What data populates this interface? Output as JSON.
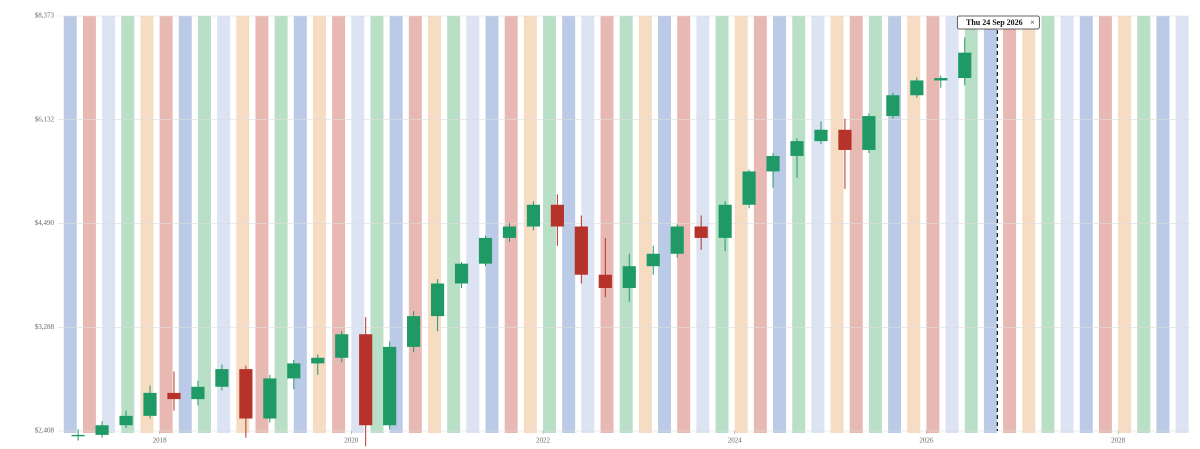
{
  "chart_data": {
    "type": "candlestick",
    "x": [
      2017.15,
      2017.4,
      2017.65,
      2017.9,
      2018.15,
      2018.4,
      2018.65,
      2018.9,
      2019.15,
      2019.4,
      2019.65,
      2019.9,
      2020.15,
      2020.4,
      2020.65,
      2020.9,
      2021.15,
      2021.4,
      2021.65,
      2021.9,
      2022.15,
      2022.4,
      2022.65,
      2022.9,
      2023.15,
      2023.4,
      2023.65,
      2023.9,
      2024.15,
      2024.4,
      2024.65,
      2024.9,
      2025.15,
      2025.4,
      2025.65,
      2025.9,
      2026.15,
      2026.4
    ],
    "open": [
      2370,
      2380,
      2450,
      2520,
      2700,
      2650,
      2750,
      2900,
      2500,
      2820,
      2950,
      3000,
      3220,
      2450,
      3100,
      3400,
      3750,
      3980,
      4300,
      4450,
      4750,
      4450,
      3850,
      3700,
      3950,
      4100,
      4450,
      4300,
      4750,
      5250,
      5500,
      5750,
      5950,
      5600,
      6200,
      6600,
      6900,
      6950
    ],
    "high": [
      2420,
      2480,
      2560,
      2760,
      2880,
      2800,
      2940,
      2930,
      2850,
      2980,
      3030,
      3250,
      3390,
      3150,
      3450,
      3800,
      4000,
      4330,
      4500,
      4800,
      4900,
      4600,
      4300,
      4100,
      4200,
      4480,
      4600,
      4800,
      5280,
      5550,
      5800,
      6100,
      6150,
      6250,
      6650,
      6960,
      7000,
      7850
    ],
    "low": [
      2340,
      2360,
      2430,
      2500,
      2560,
      2600,
      2720,
      2360,
      2470,
      2730,
      2850,
      2960,
      2300,
      2420,
      3050,
      3250,
      3700,
      3950,
      4250,
      4400,
      4200,
      3750,
      3600,
      3550,
      3850,
      4050,
      4150,
      4130,
      4700,
      5000,
      5150,
      5700,
      4980,
      5550,
      6150,
      6550,
      6750,
      6800
    ],
    "close": [
      2380,
      2450,
      2520,
      2700,
      2650,
      2750,
      2900,
      2500,
      2820,
      2950,
      3000,
      3220,
      2450,
      3100,
      3400,
      3750,
      3980,
      4300,
      4450,
      4750,
      4450,
      3850,
      3700,
      3950,
      4100,
      4450,
      4300,
      4750,
      5250,
      5500,
      5750,
      5950,
      5600,
      6200,
      6600,
      6900,
      6950,
      7500
    ],
    "up_color": "#1f9a66",
    "down_color": "#b5332a",
    "log_scale": true,
    "xlim": [
      2016.94,
      2028.75
    ],
    "xticks": [
      2018,
      2020,
      2022,
      2024,
      2026,
      2028
    ],
    "ylim": [
      2408,
      8373
    ],
    "yticks": [
      {
        "value": 2408,
        "label": "$2,408"
      },
      {
        "value": 3288,
        "label": "$3,288"
      },
      {
        "value": 4490,
        "label": "$4,490"
      },
      {
        "value": 6132,
        "label": "$6,132"
      },
      {
        "value": 8373,
        "label": "$8,373"
      }
    ],
    "bands": {
      "x": [
        2017.0,
        2017.2,
        2017.4,
        2017.6,
        2017.8,
        2018.0,
        2018.2,
        2018.4,
        2018.6,
        2018.8,
        2019.0,
        2019.2,
        2019.4,
        2019.6,
        2019.8,
        2020.0,
        2020.2,
        2020.4,
        2020.6,
        2020.8,
        2021.0,
        2021.2,
        2021.4,
        2021.6,
        2021.8,
        2022.0,
        2022.2,
        2022.4,
        2022.6,
        2022.8,
        2023.0,
        2023.2,
        2023.4,
        2023.6,
        2023.8,
        2024.0,
        2024.2,
        2024.4,
        2024.6,
        2024.8,
        2025.0,
        2025.2,
        2025.4,
        2025.6,
        2025.8,
        2026.0,
        2026.2,
        2026.4,
        2026.6,
        2026.8,
        2027.0,
        2027.2,
        2027.4,
        2027.6,
        2027.8,
        2028.0,
        2028.2,
        2028.4,
        2028.6
      ],
      "colors": [
        "#8ea6d6",
        "#d98b80",
        "#c5d0ea",
        "#8cc9a2",
        "#f0c49a",
        "#d98b80",
        "#8ea6d6",
        "#8cc9a2",
        "#c5d0ea",
        "#f0c49a",
        "#d98b80",
        "#8cc9a2",
        "#8ea6d6",
        "#f0c49a",
        "#d98b80",
        "#c5d0ea",
        "#8cc9a2",
        "#8ea6d6",
        "#d98b80",
        "#f0c49a",
        "#8cc9a2",
        "#c5d0ea",
        "#8ea6d6",
        "#d98b80",
        "#f0c49a",
        "#8cc9a2",
        "#8ea6d6",
        "#c5d0ea",
        "#d98b80",
        "#8cc9a2",
        "#f0c49a",
        "#8ea6d6",
        "#d98b80",
        "#c5d0ea",
        "#8cc9a2",
        "#f0c49a",
        "#d98b80",
        "#8ea6d6",
        "#8cc9a2",
        "#c5d0ea",
        "#f0c49a",
        "#d98b80",
        "#8cc9a2",
        "#8ea6d6",
        "#f0c49a",
        "#d98b80",
        "#c5d0ea",
        "#8cc9a2",
        "#8ea6d6",
        "#d98b80",
        "#f0c49a",
        "#8cc9a2",
        "#c5d0ea",
        "#8ea6d6",
        "#d98b80",
        "#f0c49a",
        "#8cc9a2",
        "#8ea6d6",
        "#c5d0ea"
      ]
    },
    "crosshair": {
      "x": 2026.74,
      "label": "Thu 24 Sep 2026",
      "close": "×"
    }
  }
}
